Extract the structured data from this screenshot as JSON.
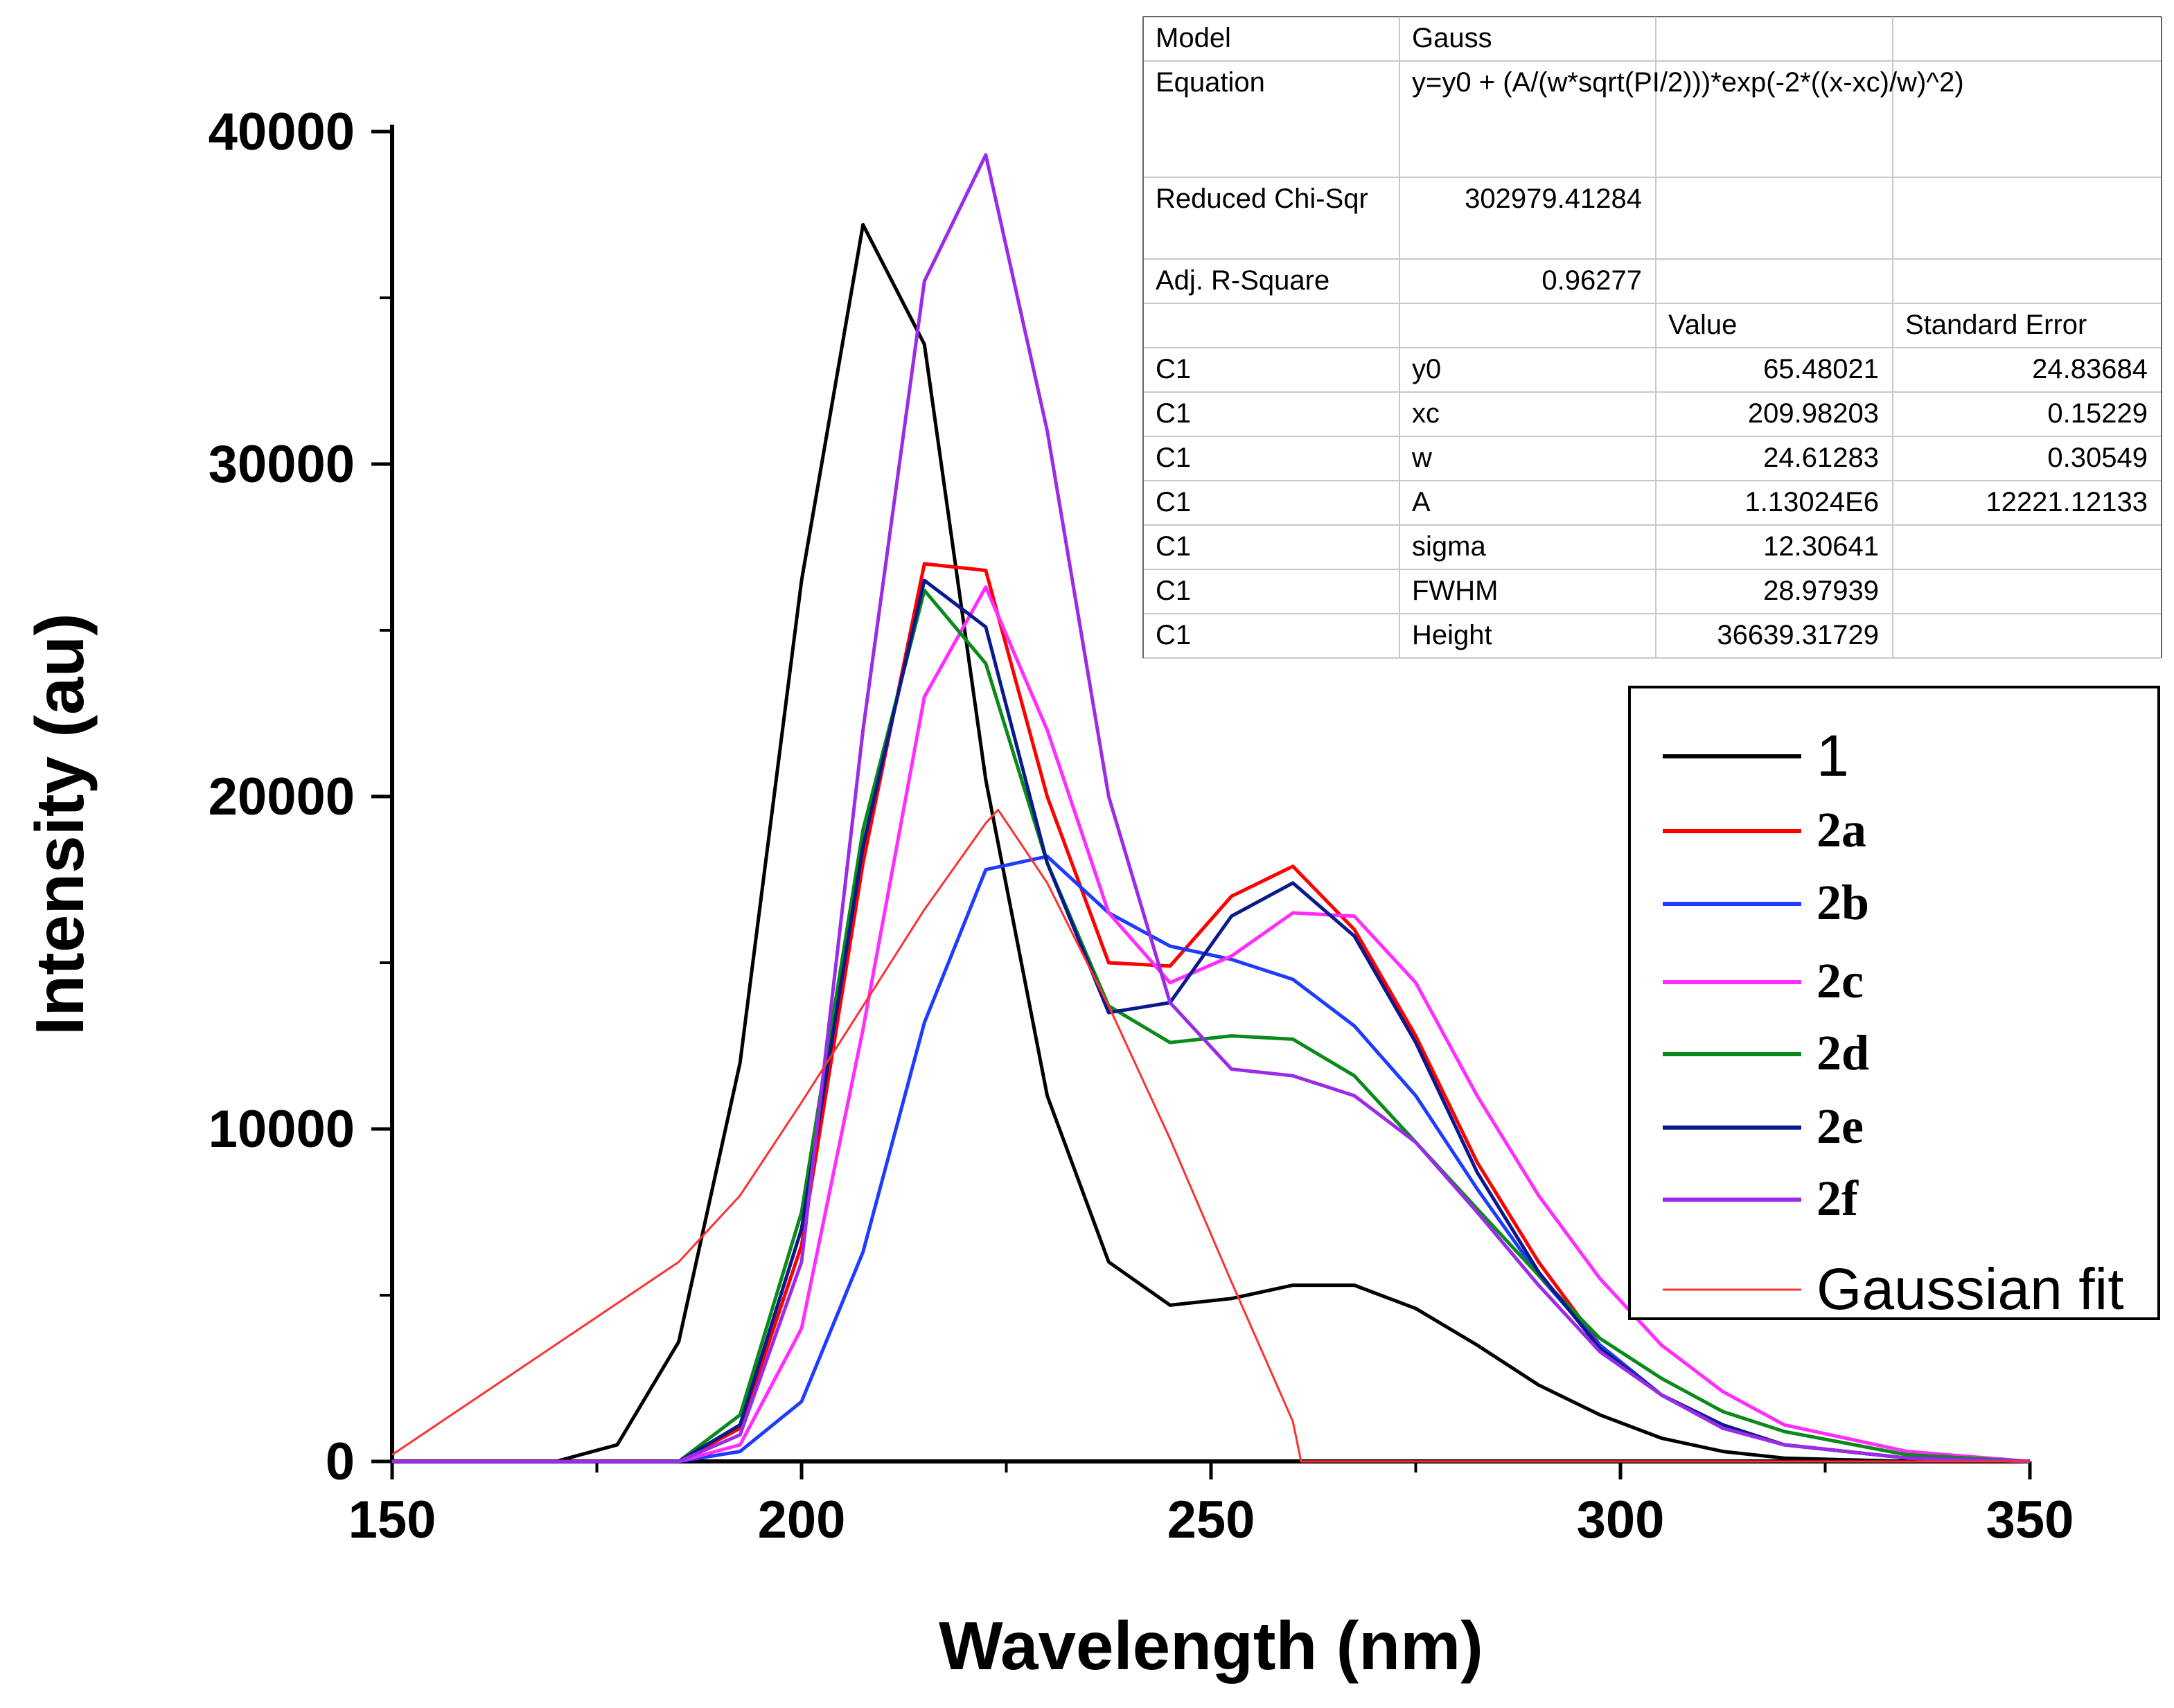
{
  "chart_data": {
    "type": "line",
    "xlabel": "Wavelength (nm)",
    "ylabel": "Intensity (au)",
    "xlim": [
      150,
      350
    ],
    "ylim": [
      0,
      40000
    ],
    "x_ticks": [
      150,
      200,
      250,
      300,
      350
    ],
    "y_ticks": [
      0,
      10000,
      20000,
      30000,
      40000
    ],
    "legend_position": "right",
    "colors": {
      "1": "#000000",
      "2a": "#ff0000",
      "2b": "#1e3cff",
      "2c": "#ff2dff",
      "2d": "#0a8a1a",
      "2e": "#0a1a8c",
      "2f": "#9a2be6",
      "fit": "#ff3030"
    },
    "series": [
      {
        "name": "1",
        "colorKey": "1",
        "legend_style": "sans",
        "points": [
          [
            150,
            0
          ],
          [
            170,
            0
          ],
          [
            177.5,
            500
          ],
          [
            185,
            3600
          ],
          [
            192.5,
            12000
          ],
          [
            200,
            26500
          ],
          [
            207.5,
            37200
          ],
          [
            215,
            33600
          ],
          [
            222.5,
            20500
          ],
          [
            230,
            11000
          ],
          [
            237.5,
            6000
          ],
          [
            245,
            4700
          ],
          [
            252.5,
            4900
          ],
          [
            260,
            5300
          ],
          [
            267.5,
            5300
          ],
          [
            275,
            4600
          ],
          [
            282.5,
            3500
          ],
          [
            290,
            2300
          ],
          [
            297.5,
            1400
          ],
          [
            305,
            700
          ],
          [
            312.5,
            300
          ],
          [
            320,
            100
          ],
          [
            335,
            0
          ],
          [
            350,
            0
          ]
        ]
      },
      {
        "name": "2a",
        "colorKey": "2a",
        "legend_style": "serif",
        "points": [
          [
            150,
            0
          ],
          [
            185,
            0
          ],
          [
            192.5,
            1000
          ],
          [
            200,
            6500
          ],
          [
            207.5,
            18000
          ],
          [
            215,
            27000
          ],
          [
            222.5,
            26800
          ],
          [
            230,
            20000
          ],
          [
            237.5,
            15000
          ],
          [
            245,
            14900
          ],
          [
            252.5,
            17000
          ],
          [
            260,
            17900
          ],
          [
            267.5,
            16000
          ],
          [
            275,
            12800
          ],
          [
            282.5,
            9000
          ],
          [
            290,
            6000
          ],
          [
            297.5,
            3500
          ],
          [
            305,
            2000
          ],
          [
            312.5,
            1100
          ],
          [
            320,
            500
          ],
          [
            335,
            100
          ],
          [
            350,
            0
          ]
        ]
      },
      {
        "name": "2b",
        "colorKey": "2b",
        "legend_style": "serif",
        "points": [
          [
            150,
            0
          ],
          [
            185,
            0
          ],
          [
            192.5,
            300
          ],
          [
            200,
            1800
          ],
          [
            207.5,
            6300
          ],
          [
            215,
            13200
          ],
          [
            222.5,
            17800
          ],
          [
            230,
            18200
          ],
          [
            237.5,
            16500
          ],
          [
            245,
            15500
          ],
          [
            252.5,
            15100
          ],
          [
            260,
            14500
          ],
          [
            267.5,
            13100
          ],
          [
            275,
            11000
          ],
          [
            282.5,
            8200
          ],
          [
            290,
            5600
          ],
          [
            297.5,
            3500
          ],
          [
            305,
            2000
          ],
          [
            312.5,
            1000
          ],
          [
            320,
            500
          ],
          [
            335,
            100
          ],
          [
            350,
            0
          ]
        ]
      },
      {
        "name": "2c",
        "colorKey": "2c",
        "legend_style": "serif",
        "points": [
          [
            150,
            0
          ],
          [
            185,
            0
          ],
          [
            192.5,
            500
          ],
          [
            200,
            4000
          ],
          [
            207.5,
            13000
          ],
          [
            215,
            23000
          ],
          [
            222.5,
            26300
          ],
          [
            230,
            22000
          ],
          [
            237.5,
            16500
          ],
          [
            245,
            14400
          ],
          [
            252.5,
            15200
          ],
          [
            260,
            16500
          ],
          [
            267.5,
            16400
          ],
          [
            275,
            14400
          ],
          [
            282.5,
            11000
          ],
          [
            290,
            8000
          ],
          [
            297.5,
            5500
          ],
          [
            305,
            3500
          ],
          [
            312.5,
            2100
          ],
          [
            320,
            1100
          ],
          [
            335,
            300
          ],
          [
            350,
            0
          ]
        ]
      },
      {
        "name": "2d",
        "colorKey": "2d",
        "legend_style": "serif",
        "points": [
          [
            150,
            0
          ],
          [
            185,
            0
          ],
          [
            192.5,
            1400
          ],
          [
            200,
            7500
          ],
          [
            207.5,
            19000
          ],
          [
            215,
            26200
          ],
          [
            222.5,
            24000
          ],
          [
            230,
            18000
          ],
          [
            237.5,
            13700
          ],
          [
            245,
            12600
          ],
          [
            252.5,
            12800
          ],
          [
            260,
            12700
          ],
          [
            267.5,
            11600
          ],
          [
            275,
            9600
          ],
          [
            282.5,
            7600
          ],
          [
            290,
            5600
          ],
          [
            297.5,
            3700
          ],
          [
            305,
            2500
          ],
          [
            312.5,
            1500
          ],
          [
            320,
            900
          ],
          [
            335,
            200
          ],
          [
            350,
            0
          ]
        ]
      },
      {
        "name": "2e",
        "colorKey": "2e",
        "legend_style": "serif",
        "points": [
          [
            150,
            0
          ],
          [
            185,
            0
          ],
          [
            192.5,
            1100
          ],
          [
            200,
            7000
          ],
          [
            207.5,
            18500
          ],
          [
            215,
            26500
          ],
          [
            222.5,
            25100
          ],
          [
            230,
            18000
          ],
          [
            237.5,
            13500
          ],
          [
            245,
            13800
          ],
          [
            252.5,
            16400
          ],
          [
            260,
            17400
          ],
          [
            267.5,
            15800
          ],
          [
            275,
            12600
          ],
          [
            282.5,
            8700
          ],
          [
            290,
            5700
          ],
          [
            297.5,
            3400
          ],
          [
            305,
            2000
          ],
          [
            312.5,
            1100
          ],
          [
            320,
            500
          ],
          [
            335,
            100
          ],
          [
            350,
            0
          ]
        ]
      },
      {
        "name": "2f",
        "colorKey": "2f",
        "legend_style": "serif",
        "points": [
          [
            150,
            0
          ],
          [
            185,
            0
          ],
          [
            192.5,
            800
          ],
          [
            200,
            6000
          ],
          [
            207.5,
            22000
          ],
          [
            215,
            35500
          ],
          [
            222.5,
            39300
          ],
          [
            230,
            31000
          ],
          [
            237.5,
            20000
          ],
          [
            245,
            13800
          ],
          [
            252.5,
            11800
          ],
          [
            260,
            11600
          ],
          [
            267.5,
            11000
          ],
          [
            275,
            9600
          ],
          [
            282.5,
            7500
          ],
          [
            290,
            5300
          ],
          [
            297.5,
            3300
          ],
          [
            305,
            2000
          ],
          [
            312.5,
            1000
          ],
          [
            320,
            500
          ],
          [
            335,
            100
          ],
          [
            350,
            0
          ]
        ]
      },
      {
        "name": "Gaussian fit",
        "colorKey": "fit",
        "legend_style": "sans",
        "thin": true,
        "points": [
          [
            150,
            200
          ],
          [
            185,
            6000
          ],
          [
            192.5,
            8000
          ],
          [
            200,
            10800
          ],
          [
            207.5,
            13700
          ],
          [
            215,
            16600
          ],
          [
            222.5,
            19200
          ],
          [
            224,
            19600
          ],
          [
            230,
            17400
          ],
          [
            237.5,
            13700
          ],
          [
            245,
            9700
          ],
          [
            252.5,
            5400
          ],
          [
            260,
            1200
          ],
          [
            261,
            0
          ],
          [
            280,
            0
          ],
          [
            350,
            0
          ]
        ]
      }
    ],
    "fit_table": {
      "rows": [
        [
          "Model",
          "Gauss",
          "",
          ""
        ],
        [
          "Equation",
          "y=y0 + (A/(w*sqrt(PI/2)))*exp(-2*((x-xc)/w)^2)",
          "",
          ""
        ],
        [
          "Reduced Chi-Sqr",
          "302979.41284",
          "",
          ""
        ],
        [
          "Adj. R-Square",
          "0.96277",
          "",
          ""
        ],
        [
          "",
          "",
          "Value",
          "Standard Error"
        ],
        [
          "C1",
          "y0",
          "65.48021",
          "24.83684"
        ],
        [
          "C1",
          "xc",
          "209.98203",
          "0.15229"
        ],
        [
          "C1",
          "w",
          "24.61283",
          "0.30549"
        ],
        [
          "C1",
          "A",
          "1.13024E6",
          "12221.12133"
        ],
        [
          "C1",
          "sigma",
          "12.30641",
          ""
        ],
        [
          "C1",
          "FWHM",
          "28.97939",
          ""
        ],
        [
          "C1",
          "Height",
          "36639.31729",
          ""
        ]
      ]
    }
  }
}
